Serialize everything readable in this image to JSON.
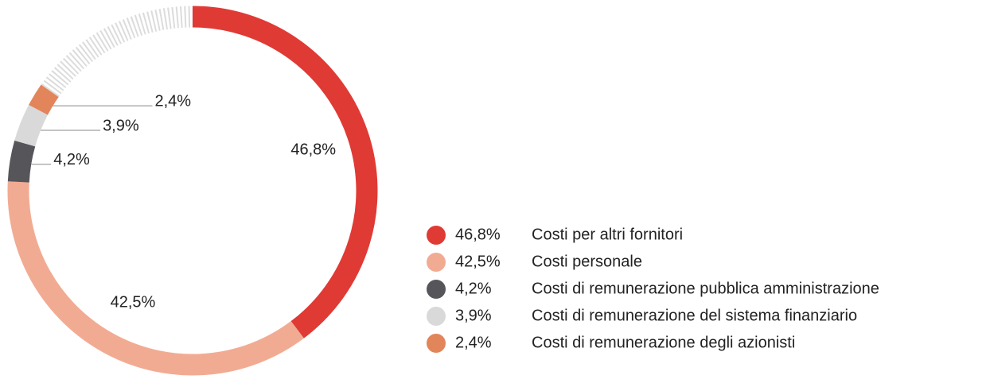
{
  "chart_data": {
    "type": "donut",
    "categories": [
      "Costi per altri fornitori",
      "Costi personale",
      "Costi di remunerazione pubblica amministrazione",
      "Costi di remunerazione del sistema finanziario",
      "Costi di remunerazione degli azionisti"
    ],
    "values": [
      46.8,
      42.5,
      4.2,
      3.9,
      2.4
    ],
    "value_labels": [
      "46,8%",
      "42,5%",
      "4,2%",
      "3,9%",
      "2,4%"
    ],
    "colors": [
      "#e03a35",
      "#f2ab93",
      "#55555a",
      "#d9d9d9",
      "#e2855a"
    ],
    "legend": "right"
  }
}
